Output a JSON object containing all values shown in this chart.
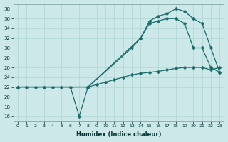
{
  "xlabel": "Humidex (Indice chaleur)",
  "x_ticks": [
    0,
    1,
    2,
    3,
    4,
    5,
    6,
    7,
    8,
    9,
    10,
    11,
    12,
    13,
    14,
    15,
    16,
    17,
    18,
    19,
    20,
    21,
    22,
    23
  ],
  "ylim": [
    15,
    39
  ],
  "y_ticks": [
    16,
    18,
    20,
    22,
    24,
    26,
    28,
    30,
    32,
    34,
    36,
    38
  ],
  "bg_color": "#cce8e8",
  "grid_color": "#b0d4d4",
  "line_color": "#1a6b6b",
  "line1_x": [
    0,
    1,
    2,
    3,
    4,
    5,
    6,
    7,
    8,
    9,
    10,
    11,
    12,
    13,
    14,
    15,
    16,
    17,
    18,
    19,
    20,
    21,
    22,
    23
  ],
  "line1_y": [
    22,
    22,
    22,
    22,
    22,
    22,
    22,
    16,
    22,
    22.5,
    23,
    23.5,
    24,
    24.5,
    24.8,
    25,
    25.2,
    25.5,
    25.8,
    26,
    26,
    26,
    25.5,
    26
  ],
  "line2_x": [
    0,
    8,
    13,
    14,
    15,
    16,
    17,
    18,
    19,
    20,
    21,
    22,
    23
  ],
  "line2_y": [
    22,
    22,
    30,
    32,
    35,
    35.5,
    36,
    36,
    35,
    30,
    30,
    26,
    25
  ],
  "line3_x": [
    0,
    8,
    14,
    15,
    16,
    17,
    18,
    19,
    20,
    21,
    22,
    23
  ],
  "line3_y": [
    22,
    22,
    32,
    35.5,
    36.5,
    37,
    38,
    37.5,
    36,
    35,
    30,
    25
  ]
}
